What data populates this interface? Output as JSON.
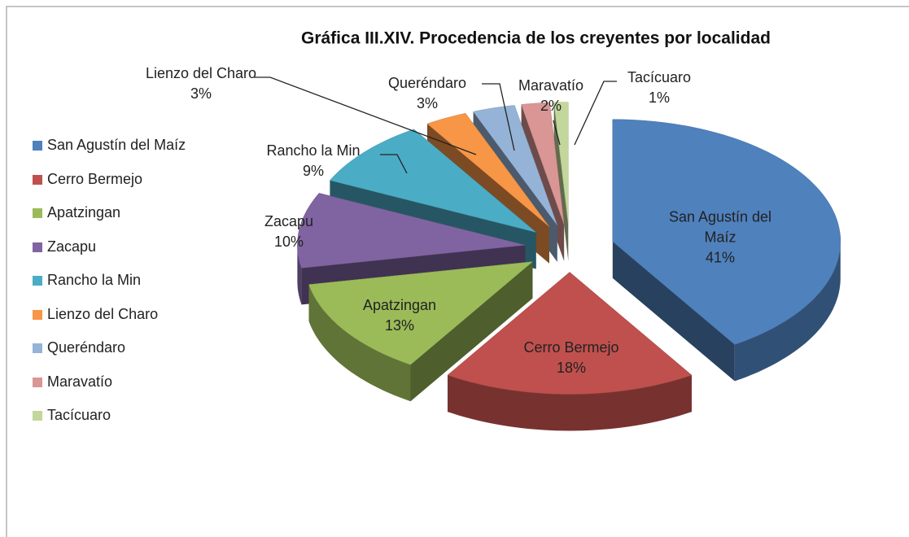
{
  "chart_data": {
    "type": "pie",
    "title": "Gráfica III.XIV. Procedencia de los creyentes por localidad",
    "categories": [
      "San Agustín del Maíz",
      "Cerro Bermejo",
      "Apatzingan",
      "Zacapu",
      "Rancho la Min",
      "Lienzo del Charo",
      "Queréndaro",
      "Maravatío",
      "Tacícuaro"
    ],
    "values": [
      41,
      18,
      13,
      10,
      9,
      3,
      3,
      2,
      1
    ],
    "value_labels": [
      "41%",
      "18%",
      "13%",
      "10%",
      "9%",
      "3%",
      "3%",
      "2%",
      "1%"
    ],
    "colors": [
      "#4f81bd",
      "#c0504d",
      "#9bbb59",
      "#8064a2",
      "#4bacc6",
      "#f79646",
      "#95b3d7",
      "#d99694",
      "#c3d69b"
    ],
    "legend": "left"
  }
}
